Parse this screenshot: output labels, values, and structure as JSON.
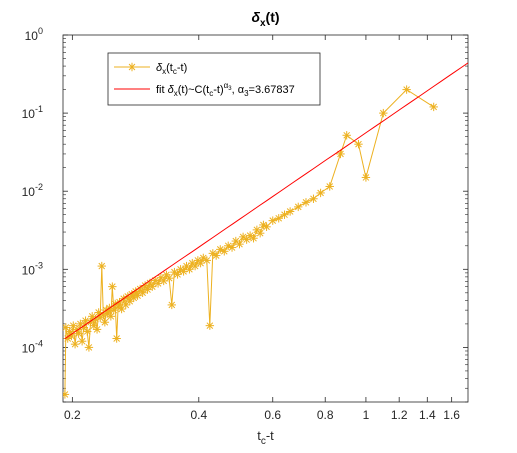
{
  "chart_data": {
    "type": "scatter",
    "title": "δx(t)",
    "title_parts": {
      "main": "δ",
      "sub": "x",
      "rest": "(t)"
    },
    "xlabel": "tc-t",
    "xlabel_parts": {
      "main": "t",
      "sub": "c",
      "rest": "-t"
    },
    "ylabel": "",
    "x_scale": "log",
    "y_scale": "log",
    "xlim": [
      0.19,
      1.75
    ],
    "ylim": [
      2e-05,
      1
    ],
    "x_ticks": [
      0.2,
      0.4,
      0.6,
      0.8,
      1,
      1.2,
      1.4,
      1.6
    ],
    "x_tick_labels": [
      "0.2",
      "0.4",
      "0.6",
      "0.8",
      "1",
      "1.2",
      "1.4",
      "1.6"
    ],
    "y_ticks": [
      0.0001,
      0.001,
      0.01,
      0.1,
      1
    ],
    "y_tick_labels": [
      {
        "base": "10",
        "exp": "-4"
      },
      {
        "base": "10",
        "exp": "-3"
      },
      {
        "base": "10",
        "exp": "-2"
      },
      {
        "base": "10",
        "exp": "-1"
      },
      {
        "base": "10",
        "exp": "0"
      }
    ],
    "grid": false,
    "legend_position": "top-left",
    "series": [
      {
        "name": "δx(tc-t)",
        "name_parts": [
          {
            "t": "δ",
            "style": "normal"
          },
          {
            "t": "x",
            "style": "sub"
          },
          {
            "t": "(t",
            "style": "normal"
          },
          {
            "t": "c",
            "style": "sub"
          },
          {
            "t": "-t)",
            "style": "normal"
          }
        ],
        "kind": "line-markers",
        "marker": "asterisk",
        "color": "#EDB120",
        "points": [
          [
            0.192,
            2.5e-05
          ],
          [
            0.193,
            0.00018
          ],
          [
            0.195,
            0.00013
          ],
          [
            0.197,
            0.00016
          ],
          [
            0.199,
            0.00014
          ],
          [
            0.201,
            0.00019
          ],
          [
            0.203,
            0.00011
          ],
          [
            0.205,
            0.00017
          ],
          [
            0.207,
            0.00015
          ],
          [
            0.209,
            0.0002
          ],
          [
            0.211,
            0.00012
          ],
          [
            0.213,
            0.00018
          ],
          [
            0.215,
            0.00022
          ],
          [
            0.217,
            0.00016
          ],
          [
            0.219,
            0.0001
          ],
          [
            0.221,
            0.00021
          ],
          [
            0.223,
            0.00025
          ],
          [
            0.225,
            0.00019
          ],
          [
            0.227,
            0.00023
          ],
          [
            0.229,
            0.00017
          ],
          [
            0.231,
            0.00028
          ],
          [
            0.233,
            0.00024
          ],
          [
            0.235,
            0.0011
          ],
          [
            0.237,
            0.00026
          ],
          [
            0.239,
            0.00021
          ],
          [
            0.241,
            0.0003
          ],
          [
            0.243,
            0.00027
          ],
          [
            0.245,
            0.00032
          ],
          [
            0.247,
            0.00025
          ],
          [
            0.249,
            0.0006
          ],
          [
            0.251,
            0.0003
          ],
          [
            0.253,
            0.00036
          ],
          [
            0.255,
            0.00013
          ],
          [
            0.257,
            0.00033
          ],
          [
            0.259,
            0.00038
          ],
          [
            0.262,
            0.00031
          ],
          [
            0.265,
            0.00042
          ],
          [
            0.268,
            0.00035
          ],
          [
            0.271,
            0.00045
          ],
          [
            0.274,
            0.00039
          ],
          [
            0.277,
            0.00048
          ],
          [
            0.28,
            0.00043
          ],
          [
            0.283,
            0.00052
          ],
          [
            0.286,
            0.00046
          ],
          [
            0.29,
            0.00056
          ],
          [
            0.294,
            0.0005
          ],
          [
            0.298,
            0.00062
          ],
          [
            0.302,
            0.00055
          ],
          [
            0.306,
            0.00067
          ],
          [
            0.31,
            0.0006
          ],
          [
            0.315,
            0.00072
          ],
          [
            0.32,
            0.00066
          ],
          [
            0.325,
            0.00078
          ],
          [
            0.33,
            0.00071
          ],
          [
            0.335,
            0.00085
          ],
          [
            0.34,
            0.00077
          ],
          [
            0.345,
            0.00035
          ],
          [
            0.35,
            0.00092
          ],
          [
            0.356,
            0.00086
          ],
          [
            0.362,
            0.001
          ],
          [
            0.368,
            0.00094
          ],
          [
            0.374,
            0.0011
          ],
          [
            0.38,
            0.001
          ],
          [
            0.386,
            0.0012
          ],
          [
            0.392,
            0.0011
          ],
          [
            0.398,
            0.0013
          ],
          [
            0.404,
            0.0012
          ],
          [
            0.41,
            0.0014
          ],
          [
            0.418,
            0.0013
          ],
          [
            0.425,
            0.00019
          ],
          [
            0.432,
            0.0016
          ],
          [
            0.44,
            0.0015
          ],
          [
            0.45,
            0.0018
          ],
          [
            0.46,
            0.0017
          ],
          [
            0.47,
            0.002
          ],
          [
            0.48,
            0.0019
          ],
          [
            0.49,
            0.0023
          ],
          [
            0.5,
            0.0021
          ],
          [
            0.51,
            0.0026
          ],
          [
            0.52,
            0.0024
          ],
          [
            0.53,
            0.0027
          ],
          [
            0.54,
            0.0025
          ],
          [
            0.55,
            0.0032
          ],
          [
            0.56,
            0.0029
          ],
          [
            0.57,
            0.0037
          ],
          [
            0.58,
            0.0035
          ],
          [
            0.6,
            0.0042
          ],
          [
            0.62,
            0.0045
          ],
          [
            0.64,
            0.005
          ],
          [
            0.66,
            0.0055
          ],
          [
            0.69,
            0.0063
          ],
          [
            0.72,
            0.0072
          ],
          [
            0.75,
            0.008
          ],
          [
            0.78,
            0.0095
          ],
          [
            0.82,
            0.0115
          ],
          [
            0.87,
            0.03
          ],
          [
            0.9,
            0.052
          ],
          [
            0.96,
            0.04
          ],
          [
            1.0,
            0.015
          ],
          [
            1.1,
            0.1
          ],
          [
            1.25,
            0.2
          ],
          [
            1.45,
            0.12
          ]
        ]
      },
      {
        "name": "fit δx(t)~C(tc-t)α3, α3=3.67837",
        "name_parts": [
          {
            "t": "fit ",
            "style": "normal"
          },
          {
            "t": "δ",
            "style": "normal"
          },
          {
            "t": "x",
            "style": "sub"
          },
          {
            "t": "(t)~C(t",
            "style": "normal"
          },
          {
            "t": "c",
            "style": "sub"
          },
          {
            "t": "-t)",
            "style": "normal"
          },
          {
            "t": "α",
            "style": "sup"
          },
          {
            "t": "3",
            "style": "supsub"
          },
          {
            "t": ", α",
            "style": "normal"
          },
          {
            "t": "3",
            "style": "sub"
          },
          {
            "t": "=3.67837",
            "style": "normal"
          }
        ],
        "kind": "line",
        "color": "#FF0000",
        "C": 0.056,
        "alpha": 3.67837,
        "x_range": [
          0.192,
          1.75
        ]
      }
    ]
  }
}
